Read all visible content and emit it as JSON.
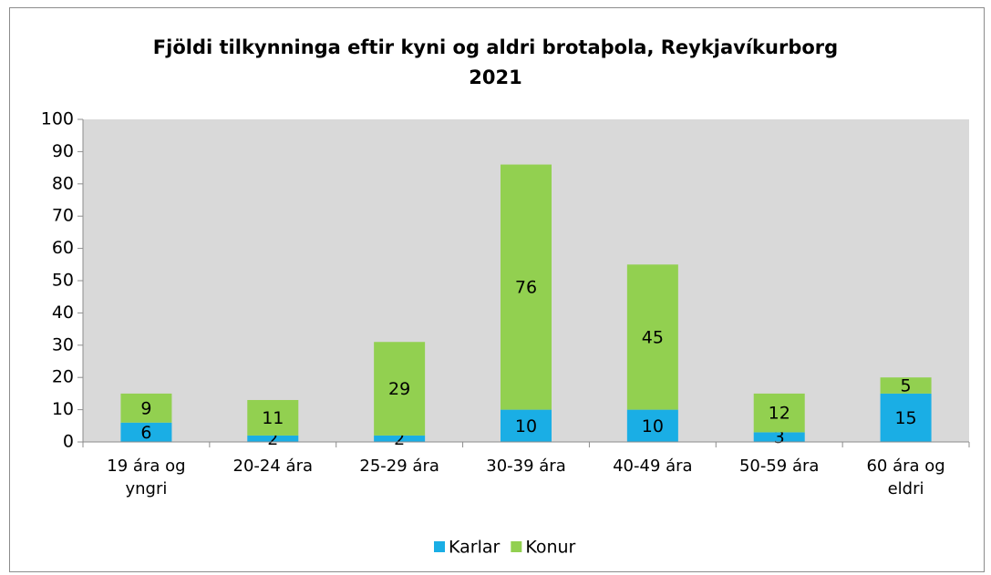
{
  "chart_data": {
    "type": "stacked_bar",
    "title": "Fjöldi tilkynninga eftir kyni og aldri brotaþola, Reykjavíkurborg\n2021",
    "categories": [
      "19 ára og\nyngri",
      "20-24 ára",
      "25-29 ára",
      "30-39 ára",
      "40-49 ára",
      "50-59 ára",
      "60 ára og\neldri"
    ],
    "series": [
      {
        "name": "Karlar",
        "color": "#1aaee5",
        "values": [
          6,
          2,
          2,
          10,
          10,
          3,
          15
        ]
      },
      {
        "name": "Konur",
        "color": "#92d050",
        "values": [
          9,
          11,
          29,
          76,
          45,
          12,
          5
        ]
      }
    ],
    "ylim": [
      0,
      100
    ],
    "yticks": [
      0,
      10,
      20,
      30,
      40,
      50,
      60,
      70,
      80,
      90,
      100
    ],
    "grid": false,
    "legend": "bottom"
  }
}
